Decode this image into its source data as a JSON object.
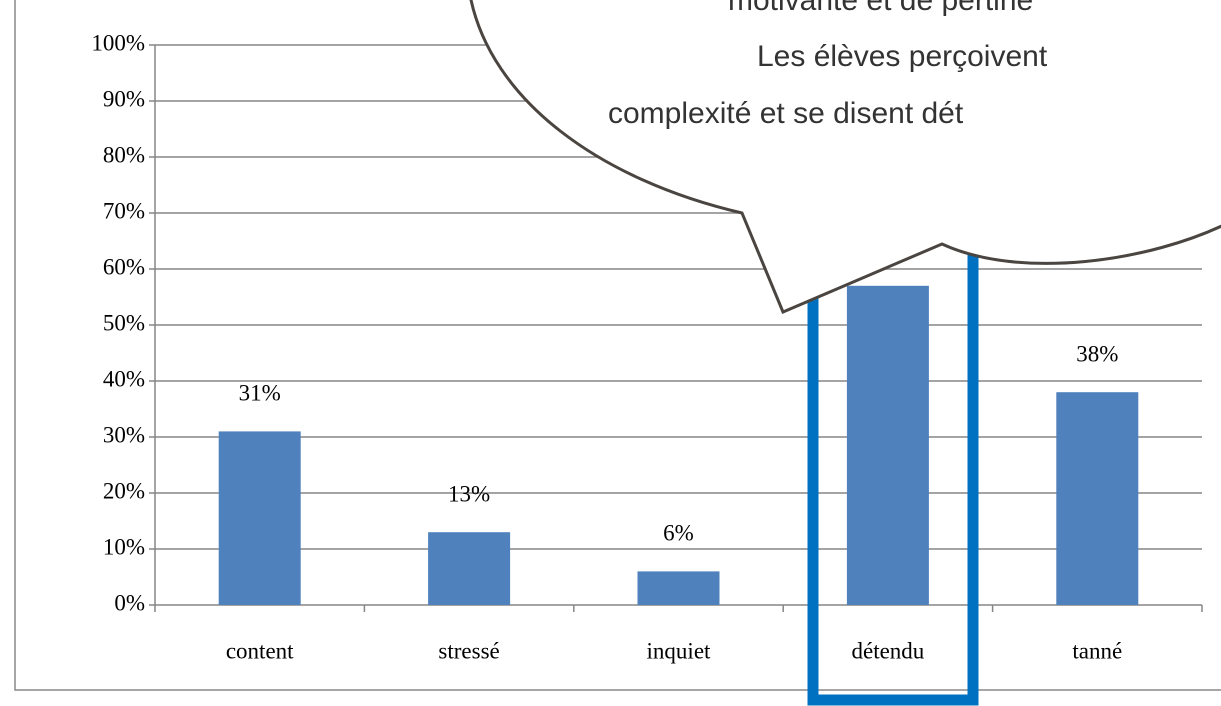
{
  "chart_data": {
    "type": "bar",
    "categories": [
      "content",
      "stressé",
      "inquiet",
      "détendu",
      "tanné"
    ],
    "values": [
      31,
      13,
      6,
      57,
      38
    ],
    "value_labels": [
      "31%",
      "13%",
      "6%",
      null,
      "38%"
    ],
    "color": "#4f81bd",
    "ylim": [
      0,
      100
    ],
    "yticks": [
      {
        "value": 0,
        "label": "0%"
      },
      {
        "value": 10,
        "label": "10%"
      },
      {
        "value": 20,
        "label": "20%"
      },
      {
        "value": 30,
        "label": "30%"
      },
      {
        "value": 40,
        "label": "40%"
      },
      {
        "value": 50,
        "label": "50%"
      },
      {
        "value": 60,
        "label": "60%"
      },
      {
        "value": 70,
        "label": "70%"
      },
      {
        "value": 80,
        "label": "80%"
      },
      {
        "value": 90,
        "label": "90%"
      },
      {
        "value": 100,
        "label": "100%"
      }
    ],
    "grid": true,
    "annotations": [
      "motivante et de pertine",
      "Les élèves perçoivent",
      "complexité et se disent dét"
    ]
  }
}
